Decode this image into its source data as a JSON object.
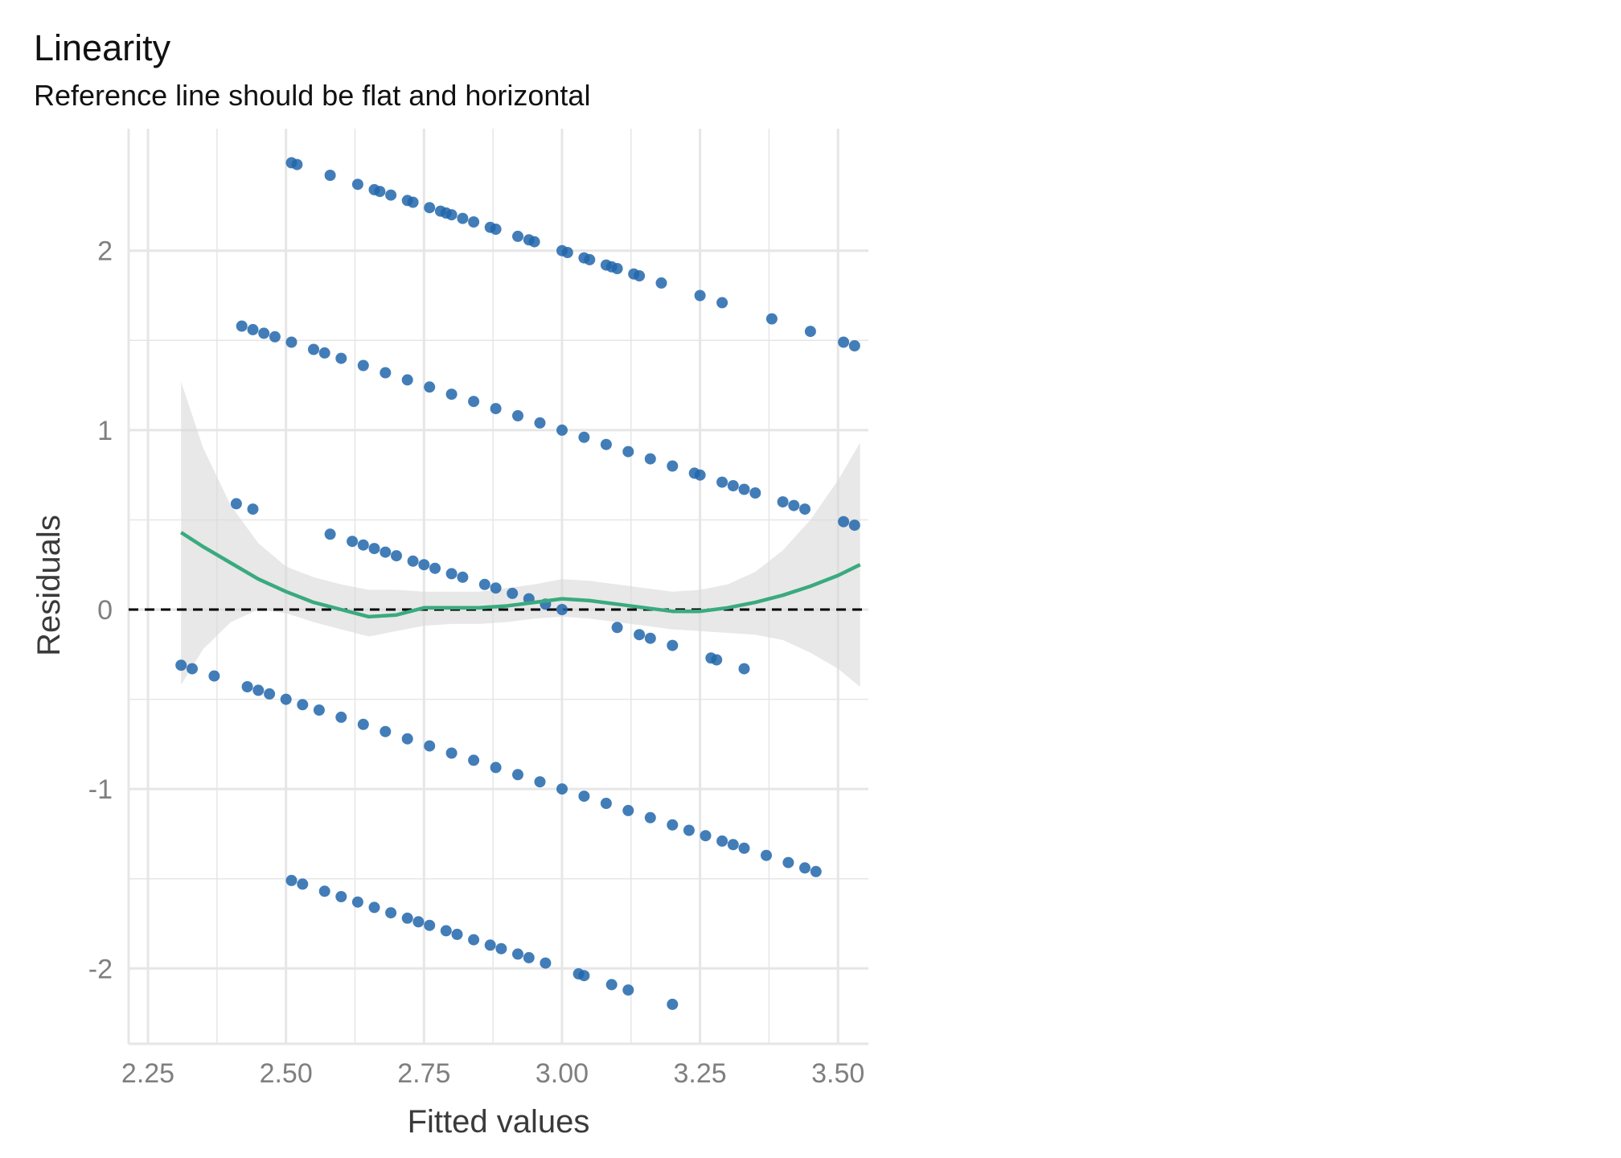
{
  "chart_data": {
    "type": "scatter",
    "title": "Linearity",
    "subtitle": "Reference line should be flat and horizontal",
    "xlabel": "Fitted values",
    "ylabel": "Residuals",
    "xlim": [
      2.215,
      3.555
    ],
    "ylim": [
      -2.42,
      2.68
    ],
    "x_ticks": [
      2.25,
      2.5,
      2.75,
      3.0,
      3.25,
      3.5
    ],
    "x_tick_labels": [
      "2.25",
      "2.50",
      "2.75",
      "3.00",
      "3.25",
      "3.50"
    ],
    "y_ticks": [
      -2,
      -1,
      0,
      1,
      2
    ],
    "y_tick_labels": [
      "-2",
      "-1",
      "0",
      "1",
      "2"
    ],
    "grid": true,
    "colors": {
      "points": "#2166ac",
      "smooth_line": "#3aaa7f",
      "confidence_band": "#d9d9d9",
      "reference_line": "#000000",
      "grid": "#e6e6e6"
    },
    "reference_line": {
      "y": 0,
      "style": "dashed"
    },
    "points": {
      "observed_outcome_levels": [
        1,
        2,
        3,
        4,
        5
      ],
      "residual_formula": "y - fitted",
      "groups": [
        {
          "outcome": 5,
          "fitted": [
            2.51,
            2.52,
            2.58,
            2.63,
            2.66,
            2.67,
            2.69,
            2.72,
            2.73,
            2.76,
            2.78,
            2.79,
            2.8,
            2.82,
            2.84,
            2.87,
            2.88,
            2.92,
            2.94,
            2.95,
            3.0,
            3.01,
            3.04,
            3.05,
            3.08,
            3.09,
            3.1,
            3.13,
            3.14,
            3.18,
            3.25,
            3.29,
            3.38,
            3.45,
            3.51,
            3.53
          ]
        },
        {
          "outcome": 4,
          "fitted": [
            2.42,
            2.44,
            2.46,
            2.48,
            2.51,
            2.55,
            2.57,
            2.6,
            2.64,
            2.68,
            2.72,
            2.76,
            2.8,
            2.84,
            2.88,
            2.92,
            2.96,
            3.0,
            3.04,
            3.08,
            3.12,
            3.16,
            3.2,
            3.24,
            3.25,
            3.29,
            3.31,
            3.33,
            3.35,
            3.4,
            3.42,
            3.44,
            3.51,
            3.53
          ]
        },
        {
          "outcome": 3,
          "fitted": [
            2.41,
            2.44,
            2.58,
            2.62,
            2.64,
            2.66,
            2.68,
            2.7,
            2.73,
            2.75,
            2.77,
            2.8,
            2.82,
            2.86,
            2.88,
            2.91,
            2.94,
            2.97,
            3.0,
            3.1,
            3.14,
            3.16,
            3.2,
            3.27,
            3.28,
            3.33
          ]
        },
        {
          "outcome": 2,
          "fitted": [
            2.31,
            2.33,
            2.37,
            2.43,
            2.45,
            2.47,
            2.5,
            2.53,
            2.56,
            2.6,
            2.64,
            2.68,
            2.72,
            2.76,
            2.8,
            2.84,
            2.88,
            2.92,
            2.96,
            3.0,
            3.04,
            3.08,
            3.12,
            3.16,
            3.2,
            3.23,
            3.26,
            3.29,
            3.31,
            3.33,
            3.37,
            3.41,
            3.44,
            3.46
          ]
        },
        {
          "outcome": 1,
          "fitted": [
            2.51,
            2.53,
            2.57,
            2.6,
            2.63,
            2.66,
            2.69,
            2.72,
            2.74,
            2.76,
            2.79,
            2.81,
            2.84,
            2.87,
            2.89,
            2.92,
            2.94,
            2.97,
            3.03,
            3.04,
            3.09,
            3.12,
            3.2
          ]
        }
      ]
    },
    "smooth": {
      "x": [
        2.31,
        2.35,
        2.4,
        2.45,
        2.5,
        2.55,
        2.6,
        2.65,
        2.7,
        2.75,
        2.8,
        2.85,
        2.9,
        2.95,
        3.0,
        3.05,
        3.1,
        3.15,
        3.2,
        3.25,
        3.3,
        3.35,
        3.4,
        3.45,
        3.5,
        3.54
      ],
      "y": [
        0.43,
        0.35,
        0.26,
        0.17,
        0.1,
        0.04,
        0.0,
        -0.04,
        -0.03,
        0.01,
        0.01,
        0.01,
        0.02,
        0.04,
        0.06,
        0.05,
        0.03,
        0.01,
        -0.01,
        -0.01,
        0.01,
        0.04,
        0.08,
        0.13,
        0.19,
        0.25
      ],
      "upper": [
        1.27,
        0.9,
        0.58,
        0.37,
        0.24,
        0.18,
        0.14,
        0.11,
        0.11,
        0.1,
        0.1,
        0.1,
        0.12,
        0.14,
        0.17,
        0.16,
        0.14,
        0.12,
        0.1,
        0.11,
        0.14,
        0.21,
        0.33,
        0.5,
        0.72,
        0.93
      ],
      "lower": [
        -0.42,
        -0.22,
        -0.07,
        0.0,
        -0.02,
        -0.07,
        -0.11,
        -0.15,
        -0.12,
        -0.09,
        -0.08,
        -0.08,
        -0.07,
        -0.05,
        -0.04,
        -0.05,
        -0.07,
        -0.09,
        -0.11,
        -0.12,
        -0.13,
        -0.14,
        -0.17,
        -0.24,
        -0.33,
        -0.43
      ]
    }
  }
}
